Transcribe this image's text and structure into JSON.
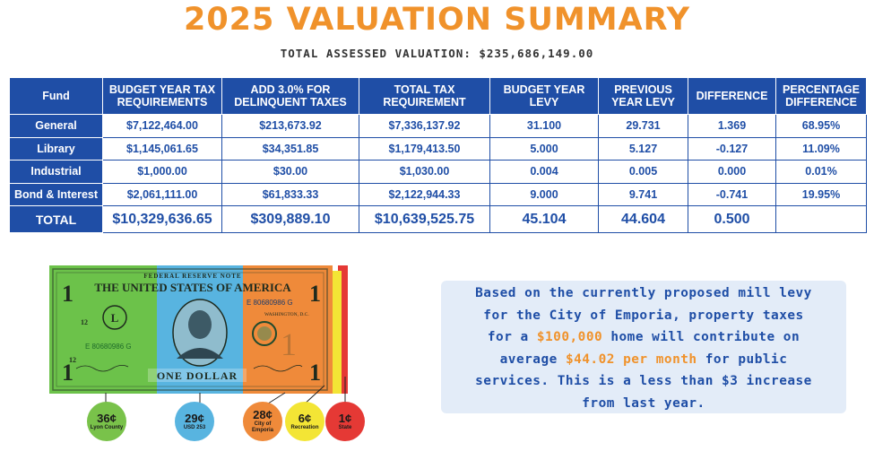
{
  "title": "2025 VALUATION SUMMARY",
  "subtitle": "TOTAL ASSESSED VALUATION: $235,686,149.00",
  "table": {
    "headers": {
      "fund": "Fund",
      "budget_req": "BUDGET YEAR TAX REQUIREMENTS",
      "add_delinquent": "ADD 3.0% FOR DELINQUENT TAXES",
      "total_req": "TOTAL TAX REQUIREMENT",
      "budget_levy": "BUDGET YEAR LEVY",
      "prev_levy": "PREVIOUS YEAR LEVY",
      "difference": "DIFFERENCE",
      "pct_difference": "PERCENTAGE DIFFERENCE"
    },
    "rows": [
      {
        "fund": "General",
        "budget_req": "$7,122,464.00",
        "add_delinquent": "$213,673.92",
        "total_req": "$7,336,137.92",
        "budget_levy": "31.100",
        "prev_levy": "29.731",
        "difference": "1.369",
        "pct_difference": "68.95%"
      },
      {
        "fund": "Library",
        "budget_req": "$1,145,061.65",
        "add_delinquent": "$34,351.85",
        "total_req": "$1,179,413.50",
        "budget_levy": "5.000",
        "prev_levy": "5.127",
        "difference": "-0.127",
        "pct_difference": "11.09%"
      },
      {
        "fund": "Industrial",
        "budget_req": "$1,000.00",
        "add_delinquent": "$30.00",
        "total_req": "$1,030.00",
        "budget_levy": "0.004",
        "prev_levy": "0.005",
        "difference": "0.000",
        "pct_difference": "0.01%"
      },
      {
        "fund": "Bond & Interest",
        "budget_req": "$2,061,111.00",
        "add_delinquent": "$61,833.33",
        "total_req": "$2,122,944.33",
        "budget_levy": "9.000",
        "prev_levy": "9.741",
        "difference": "-0.741",
        "pct_difference": "19.95%"
      }
    ],
    "total": {
      "fund": "TOTAL",
      "budget_req": "$10,329,636.65",
      "add_delinquent": "$309,889.10",
      "total_req": "$10,639,525.75",
      "budget_levy": "45.104",
      "prev_levy": "44.604",
      "difference": "0.500",
      "pct_difference": ""
    }
  },
  "bill": {
    "header_text": "FEDERAL RESERVE NOTE",
    "country_text": "THE UNITED STATES OF AMERICA",
    "denomination_text": "ONE DOLLAR",
    "serial": "E 80680986 G",
    "location": "WASHINGTON, D.C.",
    "denomination_numeral": "1",
    "corner_numeral": "12",
    "seal_letter": "L",
    "colors": {
      "green": "#6cc24a",
      "blue": "#58b4e0",
      "orange": "#ef8a3a",
      "yellow": "#f3e535",
      "red": "#e53935"
    }
  },
  "breakdown": [
    {
      "amount": "36¢",
      "label": "Lyon County",
      "color": "#79c24a"
    },
    {
      "amount": "29¢",
      "label": "USD 253",
      "color": "#58b4e0"
    },
    {
      "amount": "28¢",
      "label": "City of Emporia",
      "color": "#ef8a3a"
    },
    {
      "amount": "6¢",
      "label": "Recreation",
      "color": "#f3e535"
    },
    {
      "amount": "1¢",
      "label": "State",
      "color": "#e53935"
    }
  ],
  "info": {
    "line1": "Based on the currently proposed mill levy",
    "line2": "for the City of Emporia, property taxes",
    "line3_pre": "for a ",
    "line3_hl": "$100,000",
    "line3_post": " home will contribute on",
    "line4_pre": "average ",
    "line4_hl": "$44.02 per month",
    "line4_post": " for public",
    "line5": "services. This is a less than $3 increase",
    "line6": "from last year."
  }
}
